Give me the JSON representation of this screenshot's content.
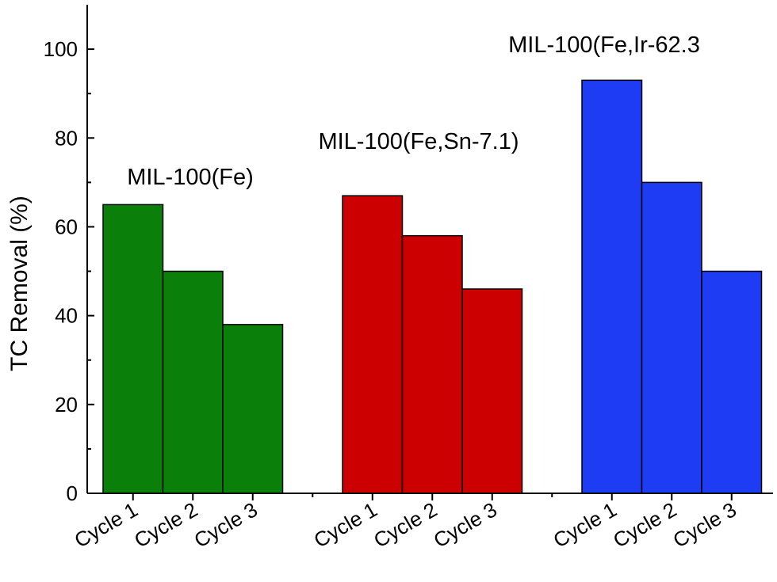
{
  "chart_data": {
    "type": "bar",
    "ylabel": "TC Removal (%)",
    "xlabel": "",
    "ylim": [
      0,
      110
    ],
    "yticks": [
      0,
      20,
      40,
      60,
      80,
      100
    ],
    "grid": false,
    "groups": [
      {
        "name": "MIL-100(Fe)",
        "color": "#0a800a",
        "categories": [
          "Cycle 1",
          "Cycle 2",
          "Cycle 3"
        ],
        "values": [
          65,
          50,
          38
        ]
      },
      {
        "name": "MIL-100(Fe,Sn-7.1)",
        "color": "#cc0000",
        "categories": [
          "Cycle 1",
          "Cycle 2",
          "Cycle 3"
        ],
        "values": [
          67,
          58,
          46
        ]
      },
      {
        "name": "MIL-100(Fe,Ir-62.3",
        "color": "#1f3cf5",
        "categories": [
          "Cycle 1",
          "Cycle 2",
          "Cycle 3"
        ],
        "values": [
          93,
          70,
          50
        ]
      }
    ]
  }
}
